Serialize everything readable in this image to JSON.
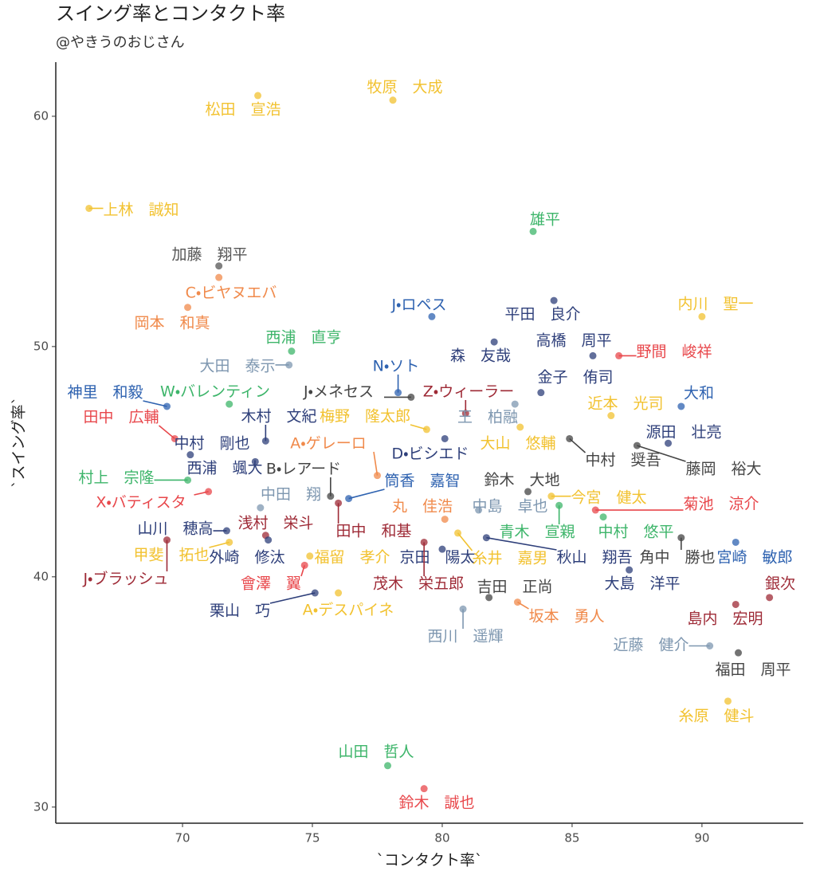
{
  "chart_data": {
    "type": "scatter",
    "title": "スイング率とコンタクト率",
    "subtitle": "@やきうのおじさん",
    "xlabel": "`コンタクト率`",
    "ylabel": "`スイング率`",
    "xlim": [
      65.12,
      93.9
    ],
    "ylim": [
      29.3,
      62.35
    ],
    "xticks": [
      70,
      75,
      80,
      85,
      90
    ],
    "yticks": [
      30,
      40,
      50,
      60
    ],
    "grid": false,
    "labels": [
      "松田　宣浩",
      "牧原　大成",
      "上林　誠知",
      "雄平",
      "加藤　翔平",
      "C・ビヤヌエバ",
      "岡本　和真",
      "J・ロペス",
      "平田　良介",
      "内川　聖一",
      "西浦　直亨",
      "大田　泰示",
      "森　友哉",
      "高橋　周平",
      "野間　峻祥",
      "N・ソト",
      "神里　和毅",
      "W・バレンティン",
      "J・メネセス",
      "Z・ウィーラー",
      "金子　侑司",
      "近本　光司",
      "大和",
      "木村　文紀",
      "梅野　隆太郎",
      "田中　広輔",
      "王　柏融",
      "D・ビシエド",
      "大山　悠輔",
      "中村　奨吾",
      "源田　壮亮",
      "藤岡　裕大",
      "中村　剛也",
      "西浦　颯大",
      "A・ゲレーロ",
      "B・レアード",
      "村上　宗隆",
      "X・バティスタ",
      "中田　翔",
      "筒香　嘉智",
      "鈴木　大地",
      "今宮　健太",
      "菊池　涼介",
      "丸　佳浩",
      "中島　卓也",
      "浅村　栄斗",
      "田中　和基",
      "山川　穂高",
      "青木　宣親",
      "中村　悠平",
      "角中　勝也",
      "宮崎　敏郎",
      "甲斐　拓也",
      "外崎　修汰",
      "福留　孝介",
      "京田　陽太",
      "糸井　嘉男",
      "秋山　翔吾",
      "大島　洋平",
      "J・ブラッシュ",
      "會澤　翼",
      "茂木　栄五郎",
      "吉田　正尚",
      "銀次",
      "島内　宏明",
      "栗山　巧",
      "A・デスパイネ",
      "西川　遥輝",
      "坂本　勇人",
      "近藤　健介",
      "福田　周平",
      "糸原　健斗",
      "山田　哲人",
      "鈴木　誠也"
    ],
    "x": [
      72.9,
      78.1,
      66.4,
      83.5,
      71.4,
      71.4,
      70.2,
      79.6,
      84.3,
      90.0,
      74.2,
      74.1,
      82.0,
      85.8,
      86.8,
      78.3,
      69.4,
      71.8,
      78.8,
      80.9,
      83.8,
      86.5,
      89.2,
      73.2,
      79.4,
      69.7,
      82.8,
      80.1,
      83.0,
      84.9,
      88.7,
      87.5,
      70.3,
      72.8,
      77.5,
      75.7,
      70.2,
      71.0,
      73.0,
      76.4,
      83.3,
      84.2,
      85.9,
      80.1,
      81.4,
      73.2,
      76.0,
      71.7,
      84.5,
      86.2,
      89.2,
      91.3,
      71.8,
      73.3,
      74.9,
      80.0,
      80.6,
      81.7,
      87.2,
      69.4,
      74.7,
      79.3,
      81.8,
      92.6,
      91.3,
      75.1,
      76.0,
      80.8,
      82.9,
      90.3,
      91.4,
      91.0,
      77.9,
      79.3
    ],
    "y": [
      60.9,
      60.7,
      56.0,
      55.0,
      53.5,
      53.0,
      51.7,
      51.3,
      52.0,
      51.3,
      49.8,
      49.2,
      50.2,
      49.6,
      49.6,
      48.0,
      47.4,
      47.5,
      47.8,
      47.1,
      48.0,
      47.0,
      47.4,
      45.9,
      46.4,
      46.0,
      47.5,
      46.0,
      46.5,
      46.0,
      45.8,
      45.7,
      45.3,
      45.0,
      44.4,
      43.5,
      44.2,
      43.7,
      43.0,
      43.4,
      43.7,
      43.5,
      42.9,
      42.5,
      42.9,
      41.8,
      43.2,
      42.0,
      43.1,
      42.6,
      41.7,
      41.5,
      41.5,
      41.6,
      40.9,
      41.2,
      41.9,
      41.7,
      40.3,
      41.6,
      40.5,
      41.5,
      39.1,
      39.1,
      38.8,
      39.3,
      39.3,
      38.6,
      38.9,
      37.0,
      36.7,
      34.6,
      31.8,
      30.8
    ],
    "colors": [
      "#F2C230",
      "#F2C230",
      "#F2C230",
      "#3DB56A",
      "#555555",
      "#F08A4B",
      "#F08A4B",
      "#2E62B0",
      "#2E3F7A",
      "#F2C230",
      "#3DB56A",
      "#7E97B0",
      "#2E3F7A",
      "#2E3F7A",
      "#E8474B",
      "#2E62B0",
      "#2E62B0",
      "#3DB56A",
      "#444444",
      "#9E2A36",
      "#2E3F7A",
      "#F2C230",
      "#2E62B0",
      "#2E3F7A",
      "#F2C230",
      "#E8474B",
      "#7E97B0",
      "#2E3F7A",
      "#F2C230",
      "#444444",
      "#2E3F7A",
      "#444444",
      "#2E3F7A",
      "#2E3F7A",
      "#F08A4B",
      "#444444",
      "#3DB56A",
      "#E8474B",
      "#7E97B0",
      "#2E62B0",
      "#444444",
      "#F2C230",
      "#E8474B",
      "#F08A4B",
      "#7E97B0",
      "#9E2A36",
      "#9E2A36",
      "#2E3F7A",
      "#3DB56A",
      "#3DB56A",
      "#444444",
      "#2E62B0",
      "#F2C230",
      "#2E3F7A",
      "#F2C230",
      "#2E3F7A",
      "#F2C230",
      "#2E3F7A",
      "#2E3F7A",
      "#9E2A36",
      "#E8474B",
      "#9E2A36",
      "#444444",
      "#9E2A36",
      "#9E2A36",
      "#2E3F7A",
      "#F2C230",
      "#7E97B0",
      "#F08A4B",
      "#7E97B0",
      "#444444",
      "#F2C230",
      "#3DB56A",
      "#E8474B"
    ]
  }
}
